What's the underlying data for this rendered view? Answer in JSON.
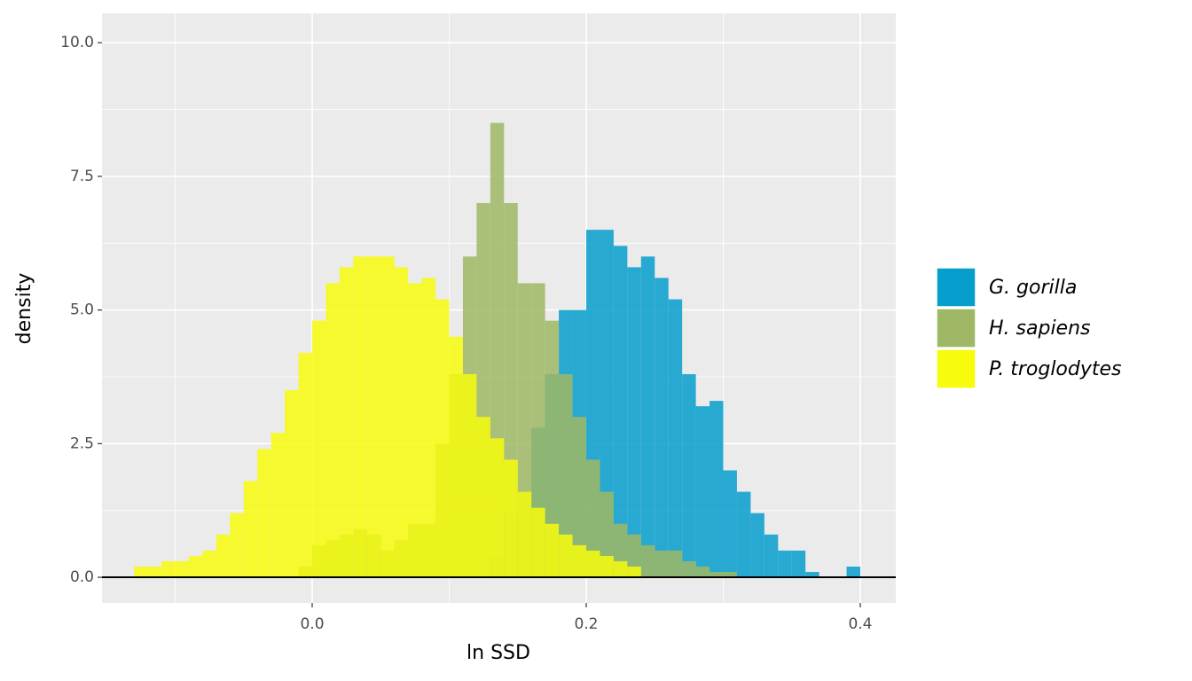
{
  "chart_data": {
    "type": "histogram",
    "x_label": "ln SSD",
    "y_label": "density",
    "bins": [
      -0.13,
      -0.12,
      -0.11,
      -0.1,
      -0.09,
      -0.08,
      -0.07,
      -0.06,
      -0.05,
      -0.04,
      -0.03,
      -0.02,
      -0.01,
      0.0,
      0.01,
      0.02,
      0.03,
      0.04,
      0.05,
      0.06,
      0.07,
      0.08,
      0.09,
      0.1,
      0.11,
      0.12,
      0.13,
      0.14,
      0.15,
      0.16,
      0.17,
      0.18,
      0.19,
      0.2,
      0.21,
      0.22,
      0.23,
      0.24,
      0.25,
      0.26,
      0.27,
      0.28,
      0.29,
      0.3,
      0.31,
      0.32,
      0.33,
      0.34,
      0.35,
      0.36,
      0.37,
      0.38,
      0.39,
      0.4
    ],
    "series": [
      {
        "name": "G. gorilla",
        "color": "#069ecd",
        "values": [
          0,
          0,
          0,
          0,
          0,
          0,
          0,
          0,
          0,
          0,
          0,
          0,
          0,
          0,
          0,
          0,
          0,
          0,
          0,
          0,
          0,
          0,
          0,
          0,
          0,
          0,
          0.4,
          1.2,
          1.6,
          2.8,
          3.8,
          5.0,
          5.0,
          6.5,
          6.5,
          6.2,
          5.8,
          6.0,
          5.6,
          5.2,
          3.8,
          3.2,
          3.3,
          2.0,
          1.6,
          1.2,
          0.8,
          0.5,
          0.5,
          0.1,
          0,
          0,
          0.2
        ]
      },
      {
        "name": "H. sapiens",
        "color": "#9fb865",
        "values": [
          0,
          0,
          0,
          0,
          0,
          0,
          0,
          0,
          0,
          0,
          0,
          0,
          0.2,
          0.6,
          0.7,
          0.8,
          0.9,
          0.8,
          0.5,
          0.7,
          1.0,
          1.0,
          2.5,
          3.8,
          6.0,
          7.0,
          8.5,
          7.0,
          5.5,
          5.5,
          4.8,
          3.8,
          3.0,
          2.2,
          1.6,
          1.0,
          0.8,
          0.6,
          0.5,
          0.5,
          0.3,
          0.2,
          0.1,
          0.1,
          0,
          0,
          0,
          0,
          0,
          0,
          0,
          0,
          0
        ]
      },
      {
        "name": "P. troglodytes",
        "color": "#f7fb0c",
        "values": [
          0.2,
          0.2,
          0.3,
          0.3,
          0.4,
          0.5,
          0.8,
          1.2,
          1.8,
          2.4,
          2.7,
          3.5,
          4.2,
          4.8,
          5.5,
          5.8,
          6.0,
          6.0,
          6.0,
          5.8,
          5.5,
          5.6,
          5.2,
          4.5,
          3.8,
          3.0,
          2.6,
          2.2,
          1.6,
          1.3,
          1.0,
          0.8,
          0.6,
          0.5,
          0.4,
          0.3,
          0.2,
          0,
          0,
          0,
          0,
          0,
          0,
          0,
          0,
          0,
          0,
          0,
          0,
          0,
          0,
          0,
          0
        ]
      }
    ],
    "xlim": [
      -0.1534,
      0.4259
    ],
    "ylim": [
      -0.48,
      10.55
    ],
    "xticks": [
      {
        "value": 0,
        "label": "0.0"
      },
      0.2,
      0.4
    ],
    "yticks": [
      {
        "value": 0,
        "label": "0.0"
      },
      2.5,
      {
        "value": 5,
        "label": "5.0"
      },
      7.5,
      {
        "value": 10,
        "label": "10.0"
      }
    ],
    "xminor": [
      -0.1,
      0.1,
      0.3
    ],
    "yminor": [
      1.25,
      3.75,
      6.25,
      8.75
    ],
    "hline": 0,
    "grid": true,
    "legend": "right"
  }
}
